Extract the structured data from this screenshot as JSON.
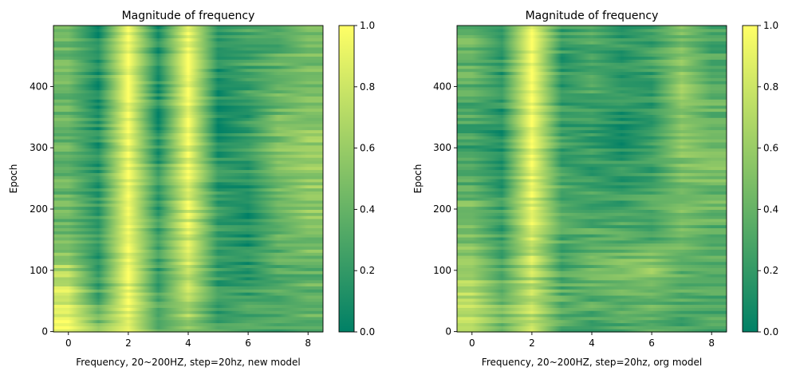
{
  "chart_data": [
    {
      "type": "heatmap",
      "title": "Magnitude of frequency",
      "xlabel": "Frequency, 20~200HZ, step=20hz, new model",
      "ylabel": "Epoch",
      "x": [
        0,
        1,
        2,
        3,
        4,
        5,
        6,
        7,
        8
      ],
      "xlim": [
        -0.5,
        8.5
      ],
      "ylim": [
        -0.5,
        499.5
      ],
      "xticks": [
        0,
        2,
        4,
        6,
        8
      ],
      "yticks": [
        0,
        100,
        200,
        300,
        400
      ],
      "colormap": [
        "#008066",
        "#ffff66"
      ],
      "colorbar": {
        "range": [
          0.0,
          1.0
        ],
        "ticks": [
          "0.0",
          "0.2",
          "0.4",
          "0.6",
          "0.8",
          "1.0"
        ]
      },
      "epoch_anchors": [
        0,
        50,
        100,
        150,
        200,
        250,
        300,
        350,
        400,
        450,
        499
      ],
      "values": [
        [
          0.95,
          0.5,
          0.9,
          0.3,
          0.6,
          0.3,
          0.3,
          0.3,
          0.4
        ],
        [
          0.85,
          0.3,
          0.95,
          0.3,
          0.7,
          0.2,
          0.25,
          0.3,
          0.4
        ],
        [
          0.7,
          0.2,
          0.98,
          0.2,
          0.8,
          0.2,
          0.15,
          0.3,
          0.4
        ],
        [
          0.5,
          0.2,
          1.0,
          0.2,
          0.85,
          0.2,
          0.1,
          0.4,
          0.5
        ],
        [
          0.4,
          0.2,
          1.0,
          0.2,
          0.9,
          0.2,
          0.1,
          0.45,
          0.55
        ],
        [
          0.4,
          0.15,
          1.0,
          0.15,
          0.95,
          0.15,
          0.15,
          0.5,
          0.6
        ],
        [
          0.4,
          0.15,
          1.0,
          0.15,
          0.95,
          0.15,
          0.2,
          0.5,
          0.6
        ],
        [
          0.4,
          0.1,
          1.0,
          0.1,
          1.0,
          0.1,
          0.2,
          0.45,
          0.55
        ],
        [
          0.45,
          0.1,
          1.0,
          0.1,
          1.0,
          0.1,
          0.25,
          0.4,
          0.5
        ],
        [
          0.45,
          0.1,
          1.0,
          0.1,
          1.0,
          0.1,
          0.3,
          0.35,
          0.45
        ],
        [
          0.45,
          0.1,
          1.0,
          0.1,
          1.0,
          0.1,
          0.3,
          0.35,
          0.45
        ]
      ]
    },
    {
      "type": "heatmap",
      "title": "Magnitude of frequency",
      "xlabel": "Frequency, 20~200HZ, step=20hz, org model",
      "ylabel": "Epoch",
      "x": [
        0,
        1,
        2,
        3,
        4,
        5,
        6,
        7,
        8
      ],
      "xlim": [
        -0.5,
        8.5
      ],
      "ylim": [
        -0.5,
        499.5
      ],
      "xticks": [
        0,
        2,
        4,
        6,
        8
      ],
      "yticks": [
        0,
        100,
        200,
        300,
        400
      ],
      "colormap": [
        "#008066",
        "#ffff66"
      ],
      "colorbar": {
        "range": [
          0.0,
          1.0
        ],
        "ticks": [
          "0.0",
          "0.2",
          "0.4",
          "0.6",
          "0.8",
          "1.0"
        ]
      },
      "epoch_anchors": [
        0,
        50,
        100,
        150,
        200,
        250,
        300,
        350,
        400,
        450,
        499
      ],
      "values": [
        [
          0.8,
          0.4,
          0.8,
          0.3,
          0.3,
          0.25,
          0.3,
          0.3,
          0.3
        ],
        [
          0.7,
          0.45,
          0.7,
          0.35,
          0.35,
          0.4,
          0.4,
          0.35,
          0.3
        ],
        [
          0.7,
          0.3,
          0.75,
          0.3,
          0.4,
          0.55,
          0.6,
          0.35,
          0.3
        ],
        [
          0.5,
          0.25,
          0.85,
          0.3,
          0.35,
          0.35,
          0.3,
          0.4,
          0.35
        ],
        [
          0.5,
          0.2,
          0.9,
          0.35,
          0.3,
          0.25,
          0.3,
          0.45,
          0.4
        ],
        [
          0.3,
          0.2,
          0.95,
          0.3,
          0.25,
          0.2,
          0.25,
          0.5,
          0.45
        ],
        [
          0.25,
          0.15,
          1.0,
          0.25,
          0.2,
          0.15,
          0.2,
          0.5,
          0.45
        ],
        [
          0.3,
          0.15,
          1.0,
          0.2,
          0.25,
          0.15,
          0.2,
          0.55,
          0.4
        ],
        [
          0.35,
          0.15,
          1.0,
          0.2,
          0.3,
          0.15,
          0.2,
          0.55,
          0.35
        ],
        [
          0.4,
          0.2,
          1.0,
          0.2,
          0.3,
          0.2,
          0.25,
          0.5,
          0.3
        ],
        [
          0.4,
          0.2,
          1.0,
          0.2,
          0.3,
          0.2,
          0.25,
          0.5,
          0.3
        ]
      ]
    }
  ]
}
